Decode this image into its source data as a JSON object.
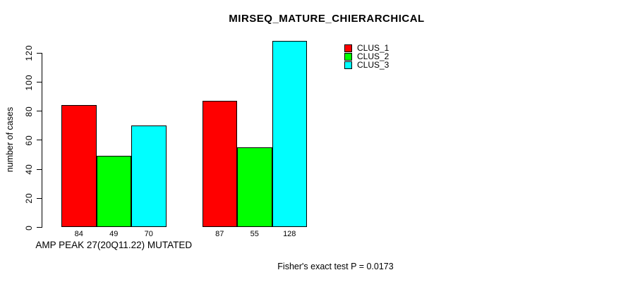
{
  "chart_data": {
    "type": "bar",
    "title": "MIRSEQ_MATURE_CHIERARCHICAL",
    "ylabel": "number of cases",
    "xlabel": "AMP PEAK 27(20Q11.22) MUTATED",
    "categories": [
      "AMP PEAK 27(20Q11.22) MUTATED",
      ""
    ],
    "series": [
      {
        "name": "CLUS_1",
        "color": "#ff0000",
        "values": [
          84,
          87
        ]
      },
      {
        "name": "CLUS_2",
        "color": "#00ff00",
        "values": [
          49,
          55
        ]
      },
      {
        "name": "CLUS_3",
        "color": "#00ffff",
        "values": [
          70,
          128
        ]
      }
    ],
    "bar_value_labels": [
      [
        84,
        49,
        70
      ],
      [
        87,
        55,
        128
      ]
    ],
    "yticks": [
      0,
      20,
      40,
      60,
      80,
      100,
      120
    ],
    "ylim": [
      0,
      130
    ],
    "grid": false,
    "legend": {
      "position": "top-right",
      "entries": [
        {
          "label": "CLUS_1",
          "color": "#ff0000"
        },
        {
          "label": "CLUS_2",
          "color": "#00ff00"
        },
        {
          "label": "CLUS_3",
          "color": "#00ffff"
        }
      ]
    },
    "annotation": "Fisher's exact test P = 0.0173"
  }
}
